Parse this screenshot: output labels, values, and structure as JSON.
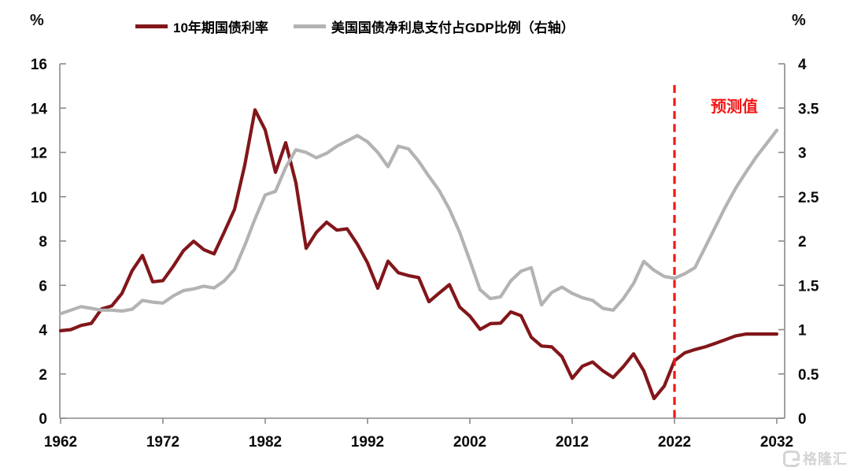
{
  "units": {
    "left": "%",
    "right": "%"
  },
  "legend": [
    {
      "label": "10年期国债利率",
      "color": "#82161a"
    },
    {
      "label": "美国国债净利息支付占GDP比例（右轴）",
      "color": "#b3b3b3"
    }
  ],
  "annotation": {
    "forecast_label": "预测值",
    "forecast_color": "#f31515",
    "divider_year": 2022
  },
  "watermark": {
    "text": "格隆汇"
  },
  "chart_data": {
    "type": "line",
    "title": "",
    "grid": false,
    "legend_position": "top",
    "x_axis": {
      "min": 1962,
      "max": 2032,
      "ticks": [
        1962,
        1972,
        1982,
        1992,
        2002,
        2012,
        2022,
        2032
      ]
    },
    "left_axis": {
      "label": "%",
      "min": 0,
      "max": 16,
      "ticks": [
        0,
        2,
        4,
        6,
        8,
        10,
        12,
        14,
        16
      ]
    },
    "right_axis": {
      "label": "%",
      "min": 0,
      "max": 4,
      "ticks": [
        0,
        0.5,
        1,
        1.5,
        2,
        2.5,
        3,
        3.5,
        4
      ]
    },
    "forecast_start": 2022,
    "x": [
      1962,
      1963,
      1964,
      1965,
      1966,
      1967,
      1968,
      1969,
      1970,
      1971,
      1972,
      1973,
      1974,
      1975,
      1976,
      1977,
      1978,
      1979,
      1980,
      1981,
      1982,
      1983,
      1984,
      1985,
      1986,
      1987,
      1988,
      1989,
      1990,
      1991,
      1992,
      1993,
      1994,
      1995,
      1996,
      1997,
      1998,
      1999,
      2000,
      2001,
      2002,
      2003,
      2004,
      2005,
      2006,
      2007,
      2008,
      2009,
      2010,
      2011,
      2012,
      2013,
      2014,
      2015,
      2016,
      2017,
      2018,
      2019,
      2020,
      2021,
      2022,
      2023,
      2024,
      2025,
      2026,
      2027,
      2028,
      2029,
      2030,
      2031,
      2032
    ],
    "series": [
      {
        "name": "10年期国债利率",
        "axis": "left",
        "color": "#82161a",
        "values": [
          3.95,
          4.0,
          4.19,
          4.28,
          4.93,
          5.07,
          5.64,
          6.67,
          7.35,
          6.16,
          6.21,
          6.85,
          7.56,
          7.99,
          7.61,
          7.42,
          8.41,
          9.43,
          11.43,
          13.92,
          13.01,
          11.1,
          12.44,
          10.62,
          7.67,
          8.39,
          8.85,
          8.49,
          8.55,
          7.86,
          7.01,
          5.87,
          7.09,
          6.57,
          6.44,
          6.35,
          5.26,
          5.65,
          6.03,
          5.02,
          4.61,
          4.01,
          4.27,
          4.29,
          4.8,
          4.63,
          3.66,
          3.26,
          3.22,
          2.78,
          1.8,
          2.35,
          2.54,
          2.14,
          1.84,
          2.33,
          2.91,
          2.14,
          0.89,
          1.45,
          2.6,
          2.95,
          3.1,
          3.22,
          3.38,
          3.55,
          3.72,
          3.8,
          3.8,
          3.8,
          3.8
        ]
      },
      {
        "name": "美国国债净利息支付占GDP比例（右轴）",
        "axis": "right",
        "color": "#b3b3b3",
        "values": [
          1.18,
          1.22,
          1.26,
          1.24,
          1.22,
          1.22,
          1.21,
          1.23,
          1.33,
          1.31,
          1.3,
          1.38,
          1.44,
          1.46,
          1.49,
          1.47,
          1.55,
          1.68,
          1.95,
          2.25,
          2.52,
          2.56,
          2.83,
          3.03,
          3.0,
          2.94,
          2.99,
          3.07,
          3.13,
          3.19,
          3.12,
          3.0,
          2.84,
          3.07,
          3.04,
          2.9,
          2.73,
          2.57,
          2.36,
          2.1,
          1.78,
          1.45,
          1.35,
          1.37,
          1.55,
          1.66,
          1.7,
          1.28,
          1.42,
          1.48,
          1.41,
          1.36,
          1.33,
          1.24,
          1.22,
          1.35,
          1.52,
          1.77,
          1.67,
          1.6,
          1.58,
          1.63,
          1.7,
          1.93,
          2.16,
          2.39,
          2.6,
          2.78,
          2.95,
          3.1,
          3.25
        ]
      }
    ]
  }
}
